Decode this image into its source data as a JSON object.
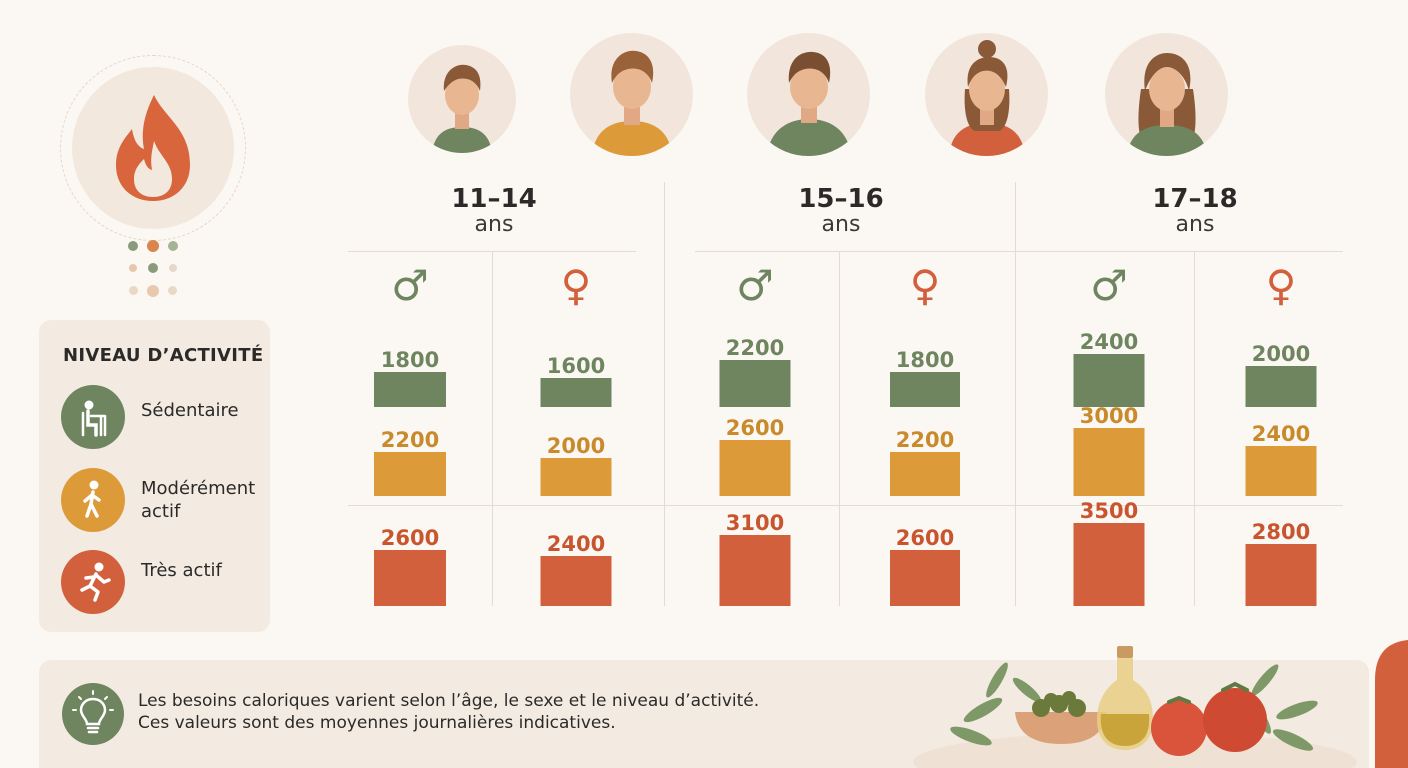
{
  "legend": {
    "title": "NIVEAU D’ACTIVITÉ",
    "items": [
      {
        "label": "Sédentaire",
        "color": "#6f8560",
        "icon": "desk-person-icon"
      },
      {
        "label": "Modérément actif",
        "color": "#dd9a38",
        "icon": "walking-person-icon"
      },
      {
        "label": "Très actif",
        "color": "#d2603c",
        "icon": "running-person-icon"
      }
    ]
  },
  "genders": {
    "male_symbol": "♂",
    "female_symbol": "♀"
  },
  "footer": {
    "line1": "Les besoins caloriques varient selon l’âge, le sexe et le niveau d’activité.",
    "line2": "Ces valeurs sont des moyennes journalières indicatives.",
    "icon": "lightbulb-icon"
  },
  "chart_data": {
    "type": "bar",
    "groups": [
      {
        "age": "11–14",
        "unit": "ans",
        "male": [
          1800,
          2200,
          2600
        ],
        "female": [
          1600,
          2000,
          2400
        ]
      },
      {
        "age": "15–16",
        "unit": "ans",
        "male": [
          2200,
          2600,
          3100
        ],
        "female": [
          1800,
          2200,
          2600
        ]
      },
      {
        "age": "17–18",
        "unit": "ans",
        "male": [
          2400,
          3000,
          3500
        ],
        "female": [
          2000,
          2400,
          2800
        ]
      }
    ],
    "levels": [
      "Sédentaire",
      "Modérément actif",
      "Très actif"
    ],
    "colors": [
      "#6f8560",
      "#dd9a38",
      "#d2603c"
    ]
  }
}
